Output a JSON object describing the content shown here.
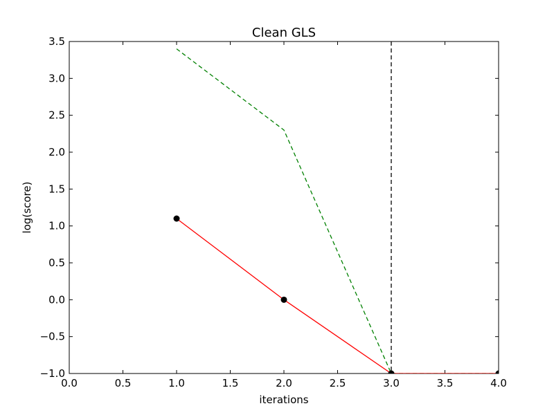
{
  "chart_data": {
    "type": "line",
    "title": "Clean GLS",
    "xlabel": "iterations",
    "ylabel": "log(score)",
    "xlim": [
      0.0,
      4.0
    ],
    "ylim": [
      -1.0,
      3.5
    ],
    "xticks": [
      0.0,
      0.5,
      1.0,
      1.5,
      2.0,
      2.5,
      3.0,
      3.5,
      4.0
    ],
    "xtick_labels": [
      "0.0",
      "0.5",
      "1.0",
      "1.5",
      "2.0",
      "2.5",
      "3.0",
      "3.5",
      "4.0"
    ],
    "yticks": [
      -1.0,
      -0.5,
      0.0,
      0.5,
      1.0,
      1.5,
      2.0,
      2.5,
      3.0,
      3.5
    ],
    "ytick_labels": [
      "−1.0",
      "−0.5",
      "0.0",
      "0.5",
      "1.0",
      "1.5",
      "2.0",
      "2.5",
      "3.0",
      "3.5"
    ],
    "grid": false,
    "series": [
      {
        "color": "#ff0000",
        "line_style": "solid",
        "marker": "circle",
        "marker_color": "#000000",
        "x": [
          1,
          2,
          3,
          4
        ],
        "y": [
          1.1,
          0.0,
          -1.0,
          -1.0
        ]
      },
      {
        "color": "#008000",
        "line_style": "dashed",
        "x": [
          1,
          2,
          3,
          4
        ],
        "y": [
          3.4,
          2.3,
          -1.0,
          -1.0
        ]
      }
    ],
    "vlines": [
      {
        "x": 3.0,
        "color": "#000000",
        "line_style": "dashed"
      }
    ]
  }
}
